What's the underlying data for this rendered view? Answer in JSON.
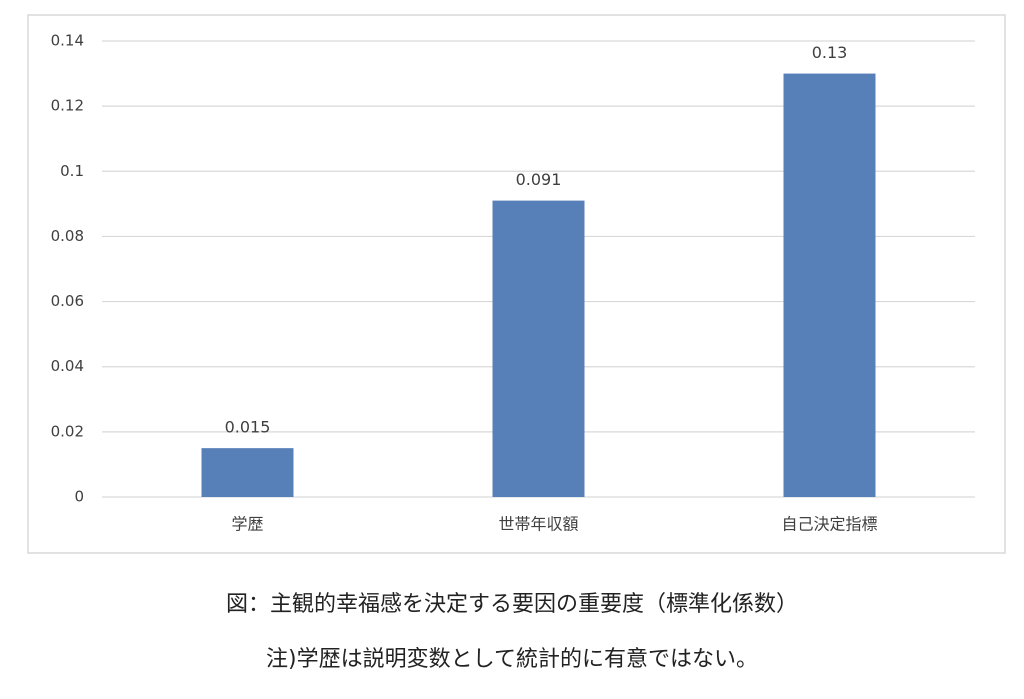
{
  "chart_data": {
    "type": "bar",
    "title": "図：主観的幸福感を決定する要因の重要度（標準化係数）",
    "annotations": [
      "注)学歴は説明変数として統計的に有意ではない。"
    ],
    "categories": [
      "学歴",
      "世帯年収額",
      "自己決定指標"
    ],
    "values": [
      0.015,
      0.091,
      0.13
    ],
    "color": "#5880b8",
    "ylim": [
      0,
      0.14
    ],
    "yticks": [
      0,
      0.02,
      0.04,
      0.06,
      0.08,
      0.1,
      0.12,
      0.14
    ],
    "grid": true
  }
}
